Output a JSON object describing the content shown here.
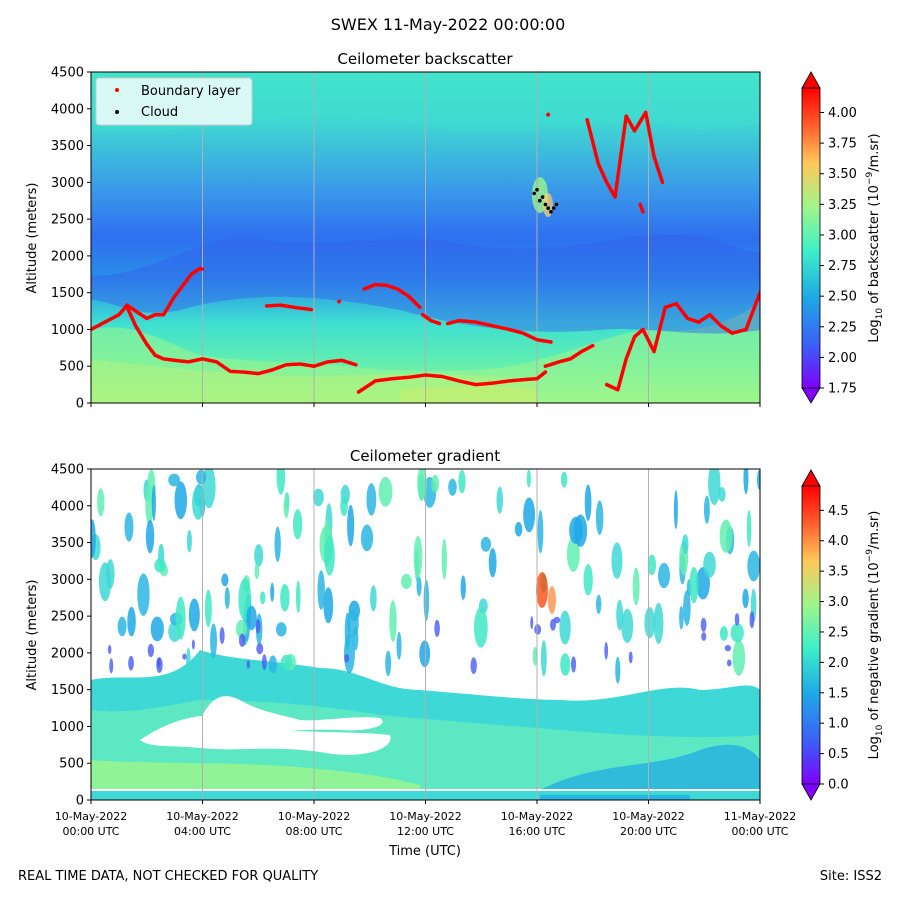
{
  "suptitle": "SWEX 11-May-2022 00:00:00",
  "footer": {
    "left": "REAL TIME DATA, NOT CHECKED FOR QUALITY",
    "right": "Site: ISS2"
  },
  "colors": {
    "boundary_layer": "#ff0000",
    "cloud": "#000000",
    "colormap": [
      "#7f00ff",
      "#3d5df6",
      "#1ea8e6",
      "#3ff0c8",
      "#9ef58b",
      "#ffc85a",
      "#ff5a2a",
      "#ff0000"
    ]
  },
  "chart_data": [
    {
      "type": "heatmap",
      "title": "Ceilometer backscatter",
      "ylabel": "Altitude (meters)",
      "ylim": [
        0,
        4500
      ],
      "yticks": [
        "0",
        "500",
        "1000",
        "1500",
        "2000",
        "2500",
        "3000",
        "3500",
        "4000",
        "4500"
      ],
      "colorbar": {
        "label_prefix": "Log",
        "label_sub": "10",
        "label_rest": " of backscatter (10",
        "label_sup": "−9",
        "label_end": "/m.sr)",
        "range": [
          1.75,
          4.2
        ],
        "ticks": [
          "1.75",
          "2.00",
          "2.25",
          "2.50",
          "2.75",
          "3.00",
          "3.25",
          "3.50",
          "3.75",
          "4.00"
        ]
      },
      "legend": {
        "placement": "top-left",
        "entries": [
          "Boundary layer",
          "Cloud"
        ]
      },
      "grid": "vertical",
      "series": [
        {
          "name": "Boundary layer",
          "kind": "scatter",
          "x_hours": [
            0.0,
            0.5,
            1.0,
            1.3,
            1.6,
            2.0,
            2.3,
            2.6,
            3.0,
            3.3,
            3.6,
            3.9,
            4.0
          ],
          "y": [
            1000,
            1100,
            1200,
            1330,
            1250,
            1150,
            1200,
            1200,
            1450,
            1600,
            1750,
            1830,
            1820
          ],
          "segments": [
            {
              "x_hours": [
                1.3,
                1.6,
                2.0,
                2.3,
                2.6,
                3.0,
                3.5,
                4.0,
                4.5,
                5.0,
                5.5,
                6.0,
                6.5,
                7.0,
                7.5,
                8.0,
                8.5,
                9.0,
                9.5
              ],
              "y": [
                1300,
                1050,
                800,
                650,
                600,
                580,
                560,
                600,
                560,
                430,
                420,
                400,
                450,
                520,
                530,
                500,
                560,
                580,
                520
              ]
            },
            {
              "x_hours": [
                6.3,
                6.8,
                7.3,
                7.9
              ],
              "y": [
                1320,
                1330,
                1300,
                1270
              ]
            },
            {
              "x_hours": [
                8.9
              ],
              "y": [
                1380
              ]
            },
            {
              "x_hours": [
                9.8,
                10.2,
                10.6,
                11.0,
                11.4,
                11.8
              ],
              "y": [
                1550,
                1610,
                1600,
                1550,
                1450,
                1300
              ]
            },
            {
              "x_hours": [
                11.9,
                12.2,
                12.5
              ],
              "y": [
                1200,
                1120,
                1080
              ]
            },
            {
              "x_hours": [
                12.8,
                13.2,
                13.8,
                14.4,
                15.0,
                15.5,
                16.0,
                16.5
              ],
              "y": [
                1080,
                1120,
                1100,
                1050,
                1000,
                950,
                860,
                830
              ]
            },
            {
              "x_hours": [
                9.6,
                10.2,
                10.8,
                11.4,
                12.0,
                12.6,
                13.2,
                13.8,
                14.4,
                15.0,
                15.6,
                16.0,
                16.3
              ],
              "y": [
                150,
                300,
                330,
                350,
                380,
                360,
                300,
                250,
                270,
                300,
                320,
                330,
                420
              ]
            },
            {
              "x_hours": [
                16.3,
                16.8,
                17.2,
                17.6,
                18.0
              ],
              "y": [
                500,
                560,
                600,
                700,
                780
              ]
            },
            {
              "x_hours": [
                18.5,
                18.9,
                19.2,
                19.5,
                19.8,
                20.2,
                20.6,
                21.0,
                21.4,
                21.8,
                22.2,
                22.6,
                23.0,
                23.5,
                24.0
              ],
              "y": [
                250,
                180,
                600,
                900,
                1000,
                700,
                1300,
                1350,
                1150,
                1100,
                1200,
                1050,
                950,
                1000,
                1500
              ]
            },
            {
              "x_hours": [
                17.8,
                18.0,
                18.2,
                18.5,
                18.8,
                19.2,
                19.5,
                19.9,
                20.2,
                20.5
              ],
              "y": [
                3850,
                3550,
                3250,
                3000,
                2800,
                3900,
                3700,
                3950,
                3350,
                3000
              ]
            },
            {
              "x_hours": [
                16.4
              ],
              "y": [
                3920
              ]
            },
            {
              "x_hours": [
                19.7,
                19.8
              ],
              "y": [
                2700,
                2600
              ]
            }
          ]
        },
        {
          "name": "Cloud",
          "kind": "scatter",
          "x_hours": [
            15.9,
            16.0,
            16.1,
            16.2,
            16.3,
            16.4,
            16.5,
            16.6,
            16.7
          ],
          "y": [
            2850,
            2900,
            2750,
            2800,
            2700,
            2650,
            2600,
            2650,
            2700
          ]
        }
      ]
    },
    {
      "type": "heatmap",
      "title": "Ceilometer gradient",
      "ylabel": "Altitude (meters)",
      "xlabel": "Time (UTC)",
      "ylim": [
        0,
        4500
      ],
      "yticks": [
        "0",
        "500",
        "1000",
        "1500",
        "2000",
        "2500",
        "3000",
        "3500",
        "4000",
        "4500"
      ],
      "xticks": [
        {
          "line1": "10-May-2022",
          "line2": "00:00 UTC"
        },
        {
          "line1": "10-May-2022",
          "line2": "04:00 UTC"
        },
        {
          "line1": "10-May-2022",
          "line2": "08:00 UTC"
        },
        {
          "line1": "10-May-2022",
          "line2": "12:00 UTC"
        },
        {
          "line1": "10-May-2022",
          "line2": "16:00 UTC"
        },
        {
          "line1": "10-May-2022",
          "line2": "20:00 UTC"
        },
        {
          "line1": "11-May-2022",
          "line2": "00:00 UTC"
        }
      ],
      "colorbar": {
        "label_prefix": "Log",
        "label_sub": "10",
        "label_rest": " of negative gradient (10",
        "label_sup": "−9",
        "label_end": "/m.sr)",
        "range": [
          0.0,
          4.9
        ],
        "ticks": [
          "0.0",
          "0.5",
          "1.0",
          "1.5",
          "2.0",
          "2.5",
          "3.0",
          "3.5",
          "4.0",
          "4.5"
        ]
      },
      "grid": "vertical"
    }
  ]
}
